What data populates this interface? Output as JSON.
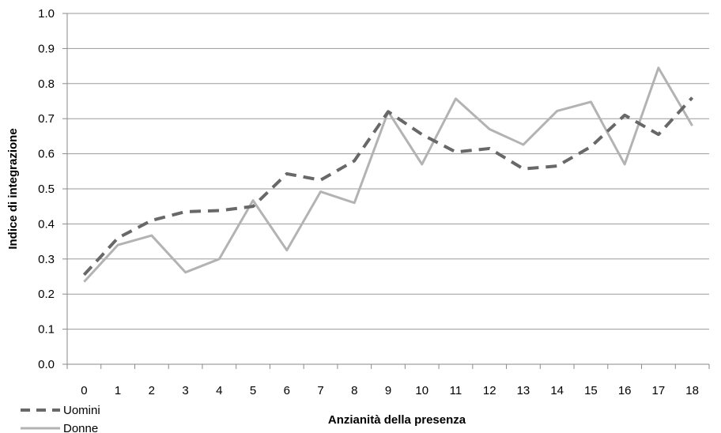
{
  "chart_data": {
    "type": "line",
    "title": "",
    "xlabel": "Anzianità della presenza",
    "ylabel": "Indice di integrazione",
    "categories": [
      "0",
      "1",
      "2",
      "3",
      "4",
      "5",
      "6",
      "7",
      "8",
      "9",
      "10",
      "11",
      "12",
      "13",
      "14",
      "15",
      "16",
      "17",
      "18"
    ],
    "ylim": [
      0,
      1.0
    ],
    "yticks": [
      "0.0",
      "0.1",
      "0.2",
      "0.3",
      "0.4",
      "0.5",
      "0.6",
      "0.7",
      "0.8",
      "0.9",
      "1.0"
    ],
    "grid": "horizontal",
    "legend_position": "bottom-left",
    "series": [
      {
        "name": "Uomini",
        "style": "dashed",
        "color": "#686868",
        "values": [
          0.255,
          0.36,
          0.41,
          0.435,
          0.438,
          0.45,
          0.543,
          0.525,
          0.58,
          0.72,
          0.655,
          0.605,
          0.615,
          0.557,
          0.565,
          0.62,
          0.71,
          0.655,
          0.76
        ]
      },
      {
        "name": "Donne",
        "style": "solid",
        "color": "#b3b3b3",
        "values": [
          0.235,
          0.34,
          0.367,
          0.262,
          0.3,
          0.467,
          0.325,
          0.492,
          0.46,
          0.72,
          0.57,
          0.757,
          0.67,
          0.626,
          0.722,
          0.748,
          0.57,
          0.845,
          0.68
        ]
      }
    ]
  }
}
